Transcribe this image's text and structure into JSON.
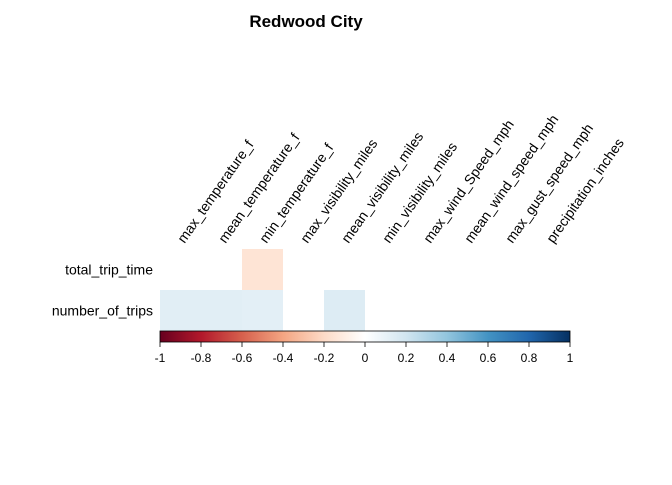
{
  "chart_data": {
    "type": "heatmap",
    "title": "Redwood City",
    "xlabel": "",
    "ylabel": "",
    "columns": [
      "max_temperature_f",
      "mean_temperature_f",
      "min_temperature_f",
      "max_visibility_miles",
      "mean_visibility_miles",
      "min_visibility_miles",
      "max_wind_Speed_mph",
      "mean_wind_speed_mph",
      "max_gust_speed_mph",
      "precipitation_inches"
    ],
    "rows": [
      "total_trip_time",
      "number_of_trips"
    ],
    "values": [
      [
        null,
        null,
        -0.15,
        null,
        null,
        null,
        null,
        null,
        null,
        null
      ],
      [
        0.13,
        0.13,
        0.12,
        null,
        0.15,
        null,
        null,
        null,
        null,
        null
      ]
    ],
    "colorbar": {
      "range": [
        -1,
        1
      ],
      "ticks": [
        "-1",
        "-0.8",
        "-0.6",
        "-0.4",
        "-0.2",
        "0",
        "0.2",
        "0.4",
        "0.6",
        "0.8",
        "1"
      ],
      "colors": [
        "#67001F",
        "#B2182B",
        "#D6604D",
        "#F4A582",
        "#FDDBC7",
        "#FFFFFF",
        "#D1E5F0",
        "#92C5DE",
        "#4393C3",
        "#2166AC",
        "#053061"
      ]
    },
    "grid": false,
    "legend": "bottom colorbar"
  }
}
